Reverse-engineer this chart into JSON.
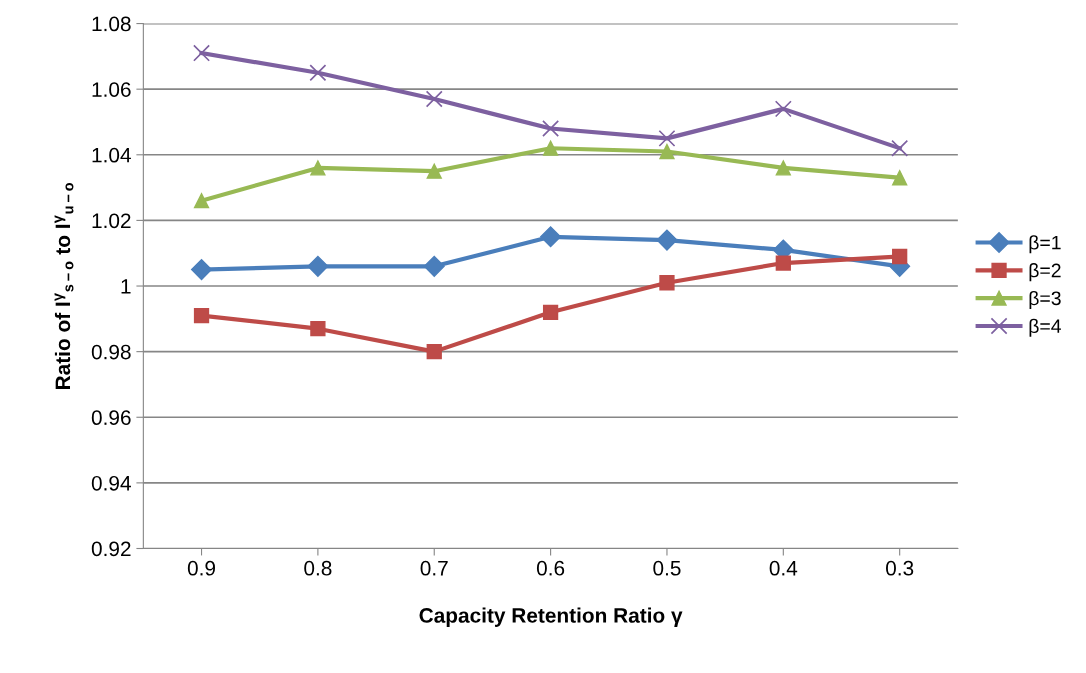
{
  "chart_data": {
    "type": "line",
    "xlabel": "Capacity Retention Ratio γ",
    "ylabel": "Ratio of I$^{γ}$$_{s−o}$ to I$^{γ}$$_{u−o}$",
    "categories": [
      "0.9",
      "0.8",
      "0.7",
      "0.6",
      "0.5",
      "0.4",
      "0.3"
    ],
    "series": [
      {
        "name": "β=1",
        "color": "#4a7ebb",
        "marker": "diamond",
        "values": [
          1.005,
          1.006,
          1.006,
          1.015,
          1.014,
          1.011,
          1.006
        ]
      },
      {
        "name": "β=2",
        "color": "#be4b48",
        "marker": "square",
        "values": [
          0.991,
          0.987,
          0.98,
          0.992,
          1.001,
          1.007,
          1.009
        ]
      },
      {
        "name": "β=3",
        "color": "#98b954",
        "marker": "triangle",
        "values": [
          1.026,
          1.036,
          1.035,
          1.042,
          1.041,
          1.036,
          1.033
        ]
      },
      {
        "name": "β=4",
        "color": "#7d60a0",
        "marker": "cross",
        "values": [
          1.071,
          1.065,
          1.057,
          1.048,
          1.045,
          1.054,
          1.042
        ]
      }
    ],
    "ylim": [
      0.92,
      1.08
    ],
    "yticks": [
      0.92,
      0.94,
      0.96,
      0.98,
      1,
      1.02,
      1.04,
      1.06,
      1.08
    ],
    "grid": "y",
    "legend": "right",
    "line_style": "solid"
  }
}
